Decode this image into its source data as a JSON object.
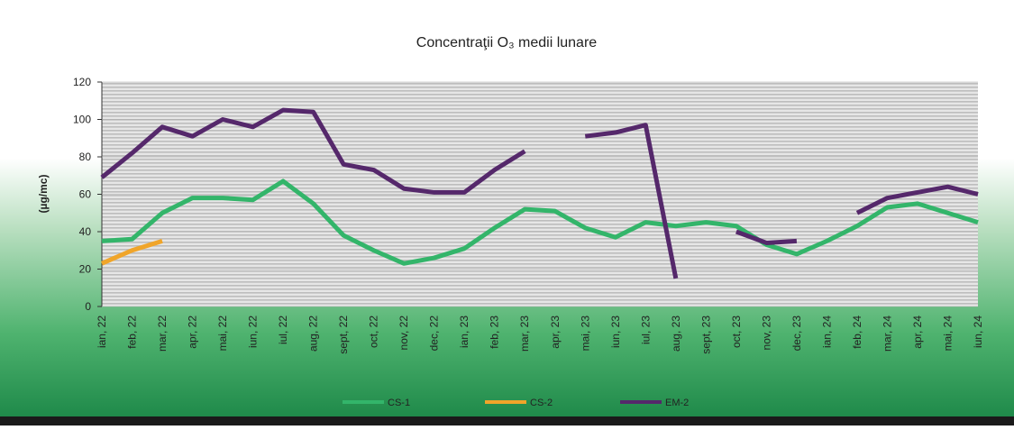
{
  "chart_data": {
    "type": "line",
    "title": "Concentraţii O₃ medii lunare",
    "y_label": "(µg/mc)",
    "categories": [
      "ian, 22",
      "feb, 22",
      "mar, 22",
      "apr, 22",
      "mai, 22",
      "iun, 22",
      "iul, 22",
      "aug, 22",
      "sept, 22",
      "oct, 22",
      "nov, 22",
      "dec, 22",
      "ian, 23",
      "feb, 23",
      "mar, 23",
      "apr, 23",
      "mai, 23",
      "iun, 23",
      "iul, 23",
      "aug, 23",
      "sept, 23",
      "oct, 23",
      "nov, 23",
      "dec, 23",
      "ian, 24",
      "feb, 24",
      "mar, 24",
      "apr, 24",
      "mai, 24",
      "iun, 24"
    ],
    "series": [
      {
        "name": "CS-1",
        "color": "#33b56a",
        "values": [
          35,
          36,
          50,
          58,
          58,
          57,
          67,
          55,
          38,
          30,
          23,
          26,
          31,
          42,
          52,
          51,
          42,
          37,
          45,
          43,
          45,
          43,
          33,
          28,
          35,
          43,
          53,
          55,
          50,
          45
        ]
      },
      {
        "name": "CS-2",
        "color": "#f0a52a",
        "values": [
          23,
          30,
          35,
          null,
          null,
          null,
          null,
          null,
          null,
          null,
          null,
          null,
          null,
          null,
          null,
          null,
          null,
          null,
          null,
          null,
          null,
          null,
          null,
          null,
          null,
          null,
          null,
          null,
          null,
          null
        ]
      },
      {
        "name": "EM-2",
        "color": "#55286b",
        "values": [
          69,
          82,
          96,
          91,
          100,
          96,
          105,
          104,
          76,
          73,
          63,
          61,
          61,
          73,
          83,
          null,
          91,
          93,
          97,
          15,
          null,
          40,
          34,
          35,
          null,
          50,
          58,
          61,
          64,
          60
        ]
      }
    ],
    "ylim": [
      0,
      120
    ],
    "yticks": [
      0,
      20,
      40,
      60,
      80,
      100,
      120
    ],
    "grid": true,
    "legend": "bottom"
  }
}
